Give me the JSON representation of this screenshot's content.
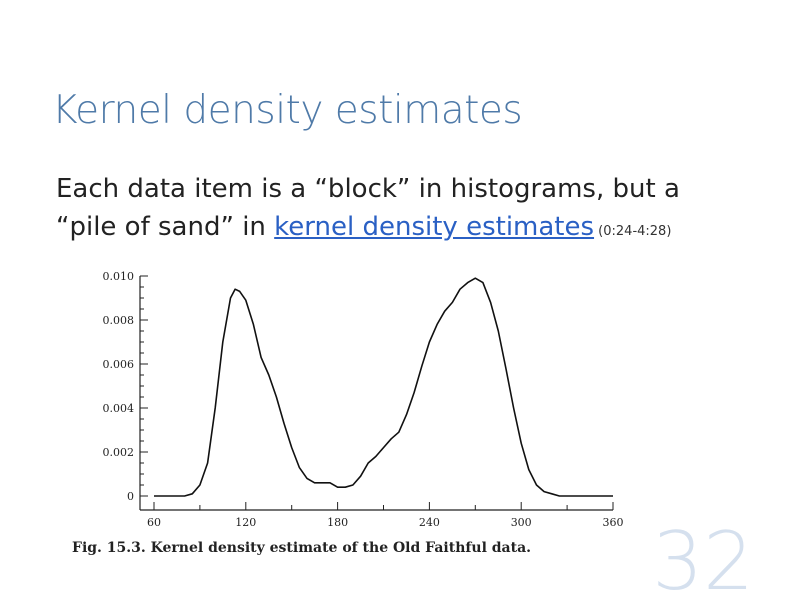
{
  "slide": {
    "title": "Kernel density estimates",
    "body_line1": "Each data item is a “block” in histograms, but a",
    "body_line2_prefix": "“pile of sand” in ",
    "body_link": "kernel density estimates",
    "body_timestamp": " (0:24-4:28)",
    "slide_number": "32"
  },
  "figure": {
    "caption": "Fig. 15.3. Kernel density estimate of the Old Faithful data."
  },
  "chart_data": {
    "type": "line",
    "title": "",
    "xlabel": "",
    "ylabel": "",
    "xlim": [
      60,
      360
    ],
    "ylim": [
      0,
      0.01
    ],
    "x_ticks": [
      "60",
      "120",
      "180",
      "240",
      "300",
      "360"
    ],
    "y_ticks": [
      "0",
      "0.002",
      "0.004",
      "0.006",
      "0.008",
      "0.010"
    ],
    "grid": false,
    "series": [
      {
        "x": [
          60,
          80,
          85,
          90,
          95,
          100,
          105,
          110,
          113,
          116,
          120,
          125,
          130,
          135,
          140,
          145,
          150,
          155,
          160,
          165,
          170,
          175,
          180,
          185,
          190,
          195,
          200,
          205,
          210,
          215,
          220,
          225,
          230,
          235,
          240,
          245,
          250,
          255,
          260,
          265,
          270,
          275,
          280,
          285,
          290,
          295,
          300,
          305,
          310,
          315,
          320,
          325,
          330,
          340,
          360
        ],
        "y": [
          0.0,
          0.0,
          0.0001,
          0.0005,
          0.0015,
          0.004,
          0.007,
          0.009,
          0.0094,
          0.0093,
          0.0089,
          0.0078,
          0.0063,
          0.0055,
          0.0045,
          0.0033,
          0.0022,
          0.0013,
          0.0008,
          0.0006,
          0.0006,
          0.0006,
          0.0004,
          0.0004,
          0.0005,
          0.0009,
          0.0015,
          0.0018,
          0.0022,
          0.0026,
          0.0029,
          0.0037,
          0.0047,
          0.0059,
          0.007,
          0.0078,
          0.0084,
          0.0088,
          0.0094,
          0.0097,
          0.0099,
          0.0097,
          0.0088,
          0.0075,
          0.0058,
          0.004,
          0.0024,
          0.0012,
          0.0005,
          0.0002,
          0.0001,
          0.0,
          0.0,
          0.0,
          0.0
        ]
      }
    ]
  }
}
